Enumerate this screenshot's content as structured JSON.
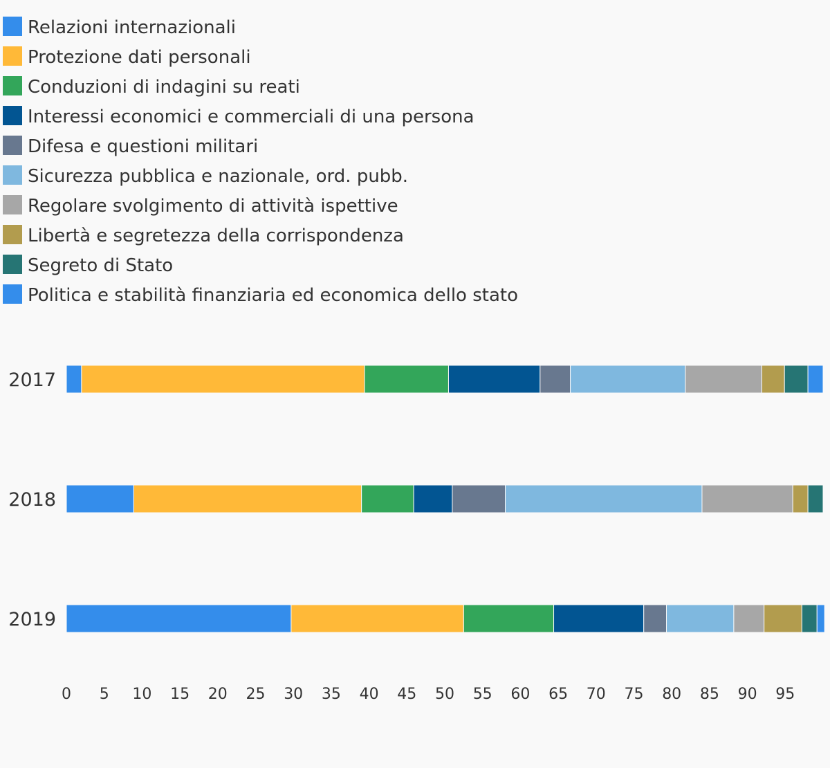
{
  "chart_data": {
    "type": "bar",
    "orientation": "horizontal",
    "stacked": true,
    "categories": [
      "2017",
      "2018",
      "2019"
    ],
    "series": [
      {
        "name": "Relazioni internazionali",
        "color": "#348deb",
        "values": [
          2.0,
          8.9,
          29.7
        ]
      },
      {
        "name": "Protezione dati personali",
        "color": "#ffb938",
        "values": [
          37.4,
          30.1,
          22.8
        ]
      },
      {
        "name": "Conduzioni di indagini su reati",
        "color": "#33a65a",
        "values": [
          11.1,
          6.9,
          11.9
        ]
      },
      {
        "name": "Interessi economici e commerciali di una persona",
        "color": "#025592",
        "values": [
          12.1,
          5.1,
          11.9
        ]
      },
      {
        "name": "Difesa e questioni militari",
        "color": "#68788f",
        "values": [
          4.0,
          7.0,
          3.0
        ]
      },
      {
        "name": "Sicurezza pubblica e nazionale, ord. pubb.",
        "color": "#7fb8df",
        "values": [
          15.2,
          26.0,
          8.9
        ]
      },
      {
        "name": "Regolare svolgimento di attività ispettive",
        "color": "#a7a7a7",
        "values": [
          10.1,
          12.0,
          4.0
        ]
      },
      {
        "name": "Libertà e segretezza della corrispondenza",
        "color": "#b29c4e",
        "values": [
          3.0,
          2.0,
          5.0
        ]
      },
      {
        "name": "Segreto di Stato",
        "color": "#267574",
        "values": [
          3.1,
          2.0,
          2.0
        ]
      },
      {
        "name": "Politica e stabilità finanziaria ed economica dello stato",
        "color": "#348deb",
        "values": [
          2.0,
          0,
          1.0
        ]
      }
    ],
    "xlim": [
      0,
      100
    ],
    "xticks": [
      0,
      5,
      10,
      15,
      20,
      25,
      30,
      35,
      40,
      45,
      50,
      55,
      60,
      65,
      70,
      75,
      80,
      85,
      90,
      95
    ],
    "legend_position": "top",
    "grid": false,
    "title": "",
    "xlabel": "",
    "ylabel": ""
  }
}
